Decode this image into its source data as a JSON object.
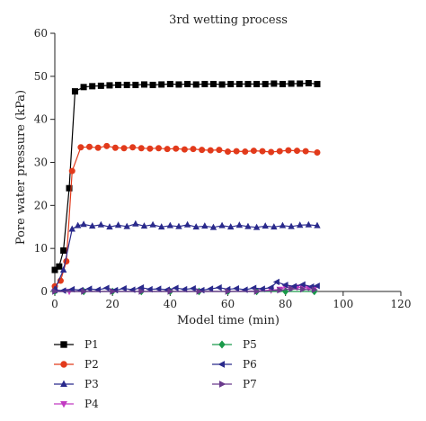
{
  "chart_data": {
    "type": "line",
    "title": "3rd wetting process",
    "xlabel": "Model time (min)",
    "ylabel": "Pore water pressure (kPa)",
    "xlim": [
      0,
      120
    ],
    "ylim": [
      0,
      60
    ],
    "xticks": [
      0,
      20,
      40,
      60,
      80,
      100,
      120
    ],
    "yticks": [
      0,
      10,
      20,
      30,
      40,
      50,
      60
    ],
    "grid": false,
    "legend_position": "bottom",
    "series": [
      {
        "name": "P1",
        "color": "#000000",
        "marker": "square",
        "x": [
          0,
          1.5,
          3,
          5,
          7,
          10,
          13,
          16,
          19,
          22,
          25,
          28,
          31,
          34,
          37,
          40,
          43,
          46,
          49,
          52,
          55,
          58,
          61,
          64,
          67,
          70,
          73,
          76,
          79,
          82,
          85,
          88,
          91
        ],
        "y": [
          5,
          5.8,
          9.5,
          24,
          46.5,
          47.5,
          47.7,
          47.8,
          47.9,
          48,
          48,
          48,
          48.1,
          48,
          48.1,
          48.2,
          48.1,
          48.2,
          48.1,
          48.2,
          48.2,
          48.1,
          48.2,
          48.2,
          48.2,
          48.2,
          48.2,
          48.3,
          48.2,
          48.3,
          48.3,
          48.4,
          48.2
        ]
      },
      {
        "name": "P2",
        "color": "#e23a1b",
        "marker": "circle",
        "x": [
          0,
          2,
          4,
          6,
          9,
          12,
          15,
          18,
          21,
          24,
          27,
          30,
          33,
          36,
          39,
          42,
          45,
          48,
          51,
          54,
          57,
          60,
          63,
          66,
          69,
          72,
          75,
          78,
          81,
          84,
          87,
          91
        ],
        "y": [
          1.2,
          2.5,
          7,
          28,
          33.5,
          33.6,
          33.4,
          33.8,
          33.4,
          33.3,
          33.5,
          33.3,
          33.2,
          33.3,
          33.1,
          33.2,
          33,
          33.1,
          32.9,
          32.8,
          32.9,
          32.5,
          32.6,
          32.5,
          32.7,
          32.6,
          32.4,
          32.6,
          32.8,
          32.7,
          32.6,
          32.3
        ]
      },
      {
        "name": "P3",
        "color": "#2a2a8c",
        "marker": "triangle-up",
        "x": [
          0,
          3,
          6,
          8,
          10,
          13,
          16,
          19,
          22,
          25,
          28,
          31,
          34,
          37,
          40,
          43,
          46,
          49,
          52,
          55,
          58,
          61,
          64,
          67,
          70,
          73,
          76,
          79,
          82,
          85,
          88,
          91
        ],
        "y": [
          0.5,
          5,
          14.5,
          15.3,
          15.6,
          15.2,
          15.5,
          15,
          15.4,
          15.1,
          15.7,
          15.2,
          15.5,
          15,
          15.3,
          15.1,
          15.5,
          15,
          15.2,
          14.9,
          15.3,
          15,
          15.4,
          15.1,
          14.9,
          15.2,
          15,
          15.3,
          15.1,
          15.4,
          15.5,
          15.3
        ]
      },
      {
        "name": "P4",
        "color": "#c23bc2",
        "marker": "triangle-down",
        "x": [
          0,
          5,
          10,
          20,
          30,
          40,
          50,
          60,
          70,
          75,
          78,
          80,
          82,
          84,
          86,
          88,
          90
        ],
        "y": [
          0,
          0,
          0,
          0,
          0,
          0,
          0,
          0,
          0.1,
          0.3,
          0.5,
          1,
          0.8,
          1,
          0.9,
          0.8,
          0.7
        ]
      },
      {
        "name": "P5",
        "color": "#1a9a4a",
        "marker": "diamond",
        "x": [
          0,
          10,
          20,
          30,
          40,
          50,
          60,
          70,
          80,
          90
        ],
        "y": [
          0,
          0,
          0,
          0,
          0,
          0,
          0,
          0,
          0,
          0
        ]
      },
      {
        "name": "P6",
        "color": "#2a2a8c",
        "marker": "triangle-left",
        "x": [
          0,
          3,
          6,
          9,
          12,
          15,
          18,
          21,
          24,
          27,
          30,
          33,
          36,
          39,
          42,
          45,
          48,
          51,
          54,
          57,
          60,
          63,
          66,
          69,
          72,
          75,
          77,
          80,
          83,
          86,
          89,
          91
        ],
        "y": [
          0.3,
          0.2,
          0.5,
          0.3,
          0.6,
          0.4,
          0.8,
          0.3,
          0.7,
          0.4,
          0.9,
          0.5,
          0.6,
          0.4,
          0.8,
          0.5,
          0.7,
          0.3,
          0.6,
          0.9,
          0.5,
          0.7,
          0.4,
          0.8,
          0.6,
          0.9,
          2.2,
          1.5,
          1.2,
          1.6,
          1.1,
          1.3
        ]
      },
      {
        "name": "P7",
        "color": "#6a3a8c",
        "marker": "triangle-right",
        "x": [
          0,
          10,
          20,
          30,
          40,
          50,
          60,
          70,
          78,
          82,
          86,
          90
        ],
        "y": [
          0,
          0,
          0,
          0,
          0,
          0,
          0,
          0,
          0.3,
          0.6,
          0.5,
          0.4
        ]
      }
    ]
  }
}
